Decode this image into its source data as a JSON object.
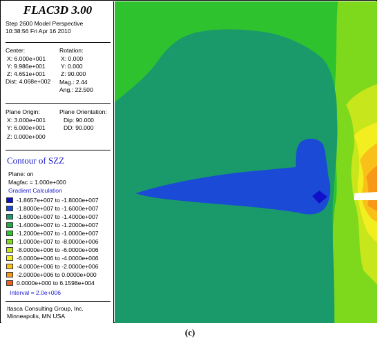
{
  "header": {
    "app_title": "FLAC3D 3.00",
    "step_line": "Step 2600  Model Perspective",
    "timestamp": "10:38:56 Fri Apr 16 2010"
  },
  "view": {
    "center_label": "Center:",
    "center_x": "X:  6.000e+001",
    "center_y": "Y:  9.986e+001",
    "center_z": "Z:  4.651e+001",
    "dist": "Dist: 4.068e+002",
    "rotation_label": "Rotation:",
    "rot_x": "X:   0.000",
    "rot_y": "Y:   0.000",
    "rot_z": "Z:  90.000",
    "mag": "Mag.:     2.44",
    "ang": "Ang.:  22.500"
  },
  "plane": {
    "origin_label": "Plane Origin:",
    "origin_x": "X:  3.000e+001",
    "origin_y": "Y:  6.000e+001",
    "origin_z": "Z:  0.000e+000",
    "orientation_label": "Plane Orientation:",
    "dip": "Dip:  90.000",
    "dd": "DD:  90.000"
  },
  "contour": {
    "title": "Contour of SZZ",
    "plane_on": "Plane: on",
    "magfac": "Magfac =  1.000e+000",
    "gradient": "Gradient Calculation",
    "interval": "Interval = 2.0e+006",
    "bands": [
      {
        "range": "-1.8657e+007 to -1.8000e+007",
        "color": "#1010c8"
      },
      {
        "range": "-1.8000e+007 to -1.6000e+007",
        "color": "#1a4ad6"
      },
      {
        "range": "-1.6000e+007 to -1.4000e+007",
        "color": "#1a9a6a"
      },
      {
        "range": "-1.4000e+007 to -1.2000e+007",
        "color": "#22aa44"
      },
      {
        "range": "-1.2000e+007 to -1.0000e+007",
        "color": "#2ec22e"
      },
      {
        "range": "-1.0000e+007 to -8.0000e+006",
        "color": "#7ed81c"
      },
      {
        "range": "-8.0000e+006 to -6.0000e+006",
        "color": "#c8e61c"
      },
      {
        "range": "-6.0000e+006 to -4.0000e+006",
        "color": "#f2ee20"
      },
      {
        "range": "-4.0000e+006 to -2.0000e+006",
        "color": "#f8c018"
      },
      {
        "range": "-2.0000e+006 to  0.0000e+000",
        "color": "#f89818"
      },
      {
        "range": " 0.0000e+000 to  6.1598e+004",
        "color": "#f06018"
      }
    ]
  },
  "footer": {
    "company": "Itasca Consulting Group, Inc.",
    "city": "Minneapolis, MN  USA"
  },
  "caption": "(c)"
}
